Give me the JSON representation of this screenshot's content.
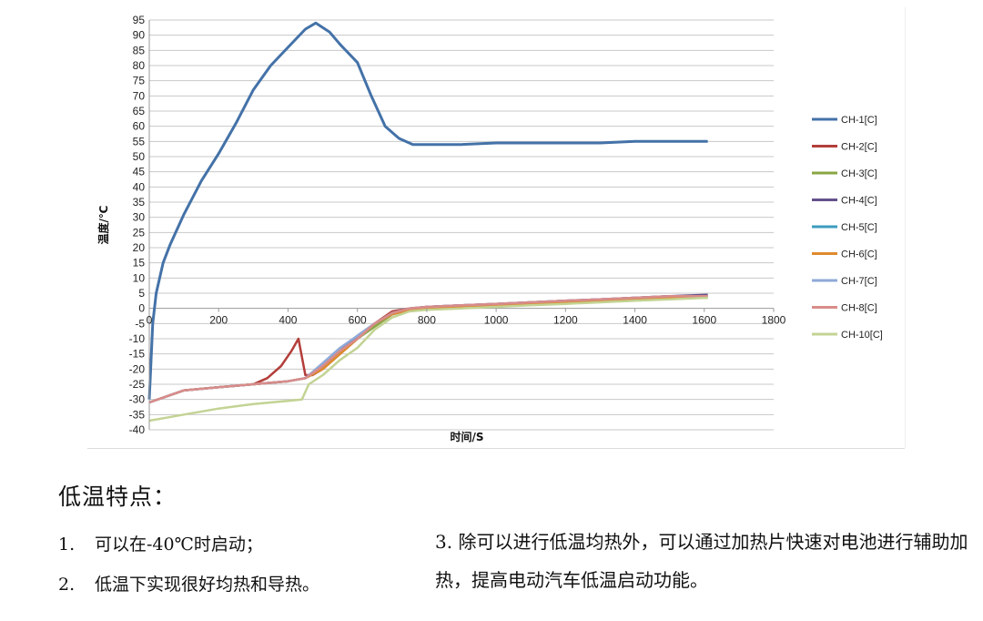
{
  "chart_data": {
    "type": "line",
    "xlabel": "时间/S",
    "ylabel": "温度/℃",
    "xlim": [
      0,
      1800
    ],
    "ylim": [
      -40,
      95
    ],
    "x_ticks": [
      0,
      200,
      400,
      600,
      800,
      1000,
      1200,
      1400,
      1600,
      1800
    ],
    "y_ticks": [
      -40,
      -35,
      -30,
      -25,
      -20,
      -15,
      -10,
      -5,
      0,
      5,
      10,
      15,
      20,
      25,
      30,
      35,
      40,
      45,
      50,
      55,
      60,
      65,
      70,
      75,
      80,
      85,
      90,
      95
    ],
    "grid": true,
    "legend_position": "right",
    "series": [
      {
        "name": "CH-1[C]",
        "color": "#4472a8",
        "points": [
          [
            0,
            -30
          ],
          [
            10,
            -5
          ],
          [
            20,
            5
          ],
          [
            40,
            15
          ],
          [
            60,
            21
          ],
          [
            80,
            26
          ],
          [
            100,
            31
          ],
          [
            150,
            42
          ],
          [
            200,
            51
          ],
          [
            250,
            61
          ],
          [
            300,
            72
          ],
          [
            350,
            80
          ],
          [
            400,
            86
          ],
          [
            450,
            92
          ],
          [
            480,
            94
          ],
          [
            520,
            91
          ],
          [
            550,
            87
          ],
          [
            600,
            81
          ],
          [
            640,
            70
          ],
          [
            680,
            60
          ],
          [
            720,
            56
          ],
          [
            760,
            54
          ],
          [
            800,
            54
          ],
          [
            900,
            54
          ],
          [
            1000,
            54.5
          ],
          [
            1100,
            54.5
          ],
          [
            1200,
            54.5
          ],
          [
            1300,
            54.5
          ],
          [
            1400,
            55
          ],
          [
            1500,
            55
          ],
          [
            1610,
            55
          ]
        ]
      },
      {
        "name": "CH-2[C]",
        "color": "#b33e3a",
        "points": [
          [
            0,
            -31
          ],
          [
            50,
            -29
          ],
          [
            100,
            -27
          ],
          [
            200,
            -26
          ],
          [
            300,
            -25
          ],
          [
            340,
            -23
          ],
          [
            380,
            -19
          ],
          [
            410,
            -14
          ],
          [
            430,
            -10
          ],
          [
            450,
            -22
          ],
          [
            470,
            -22
          ],
          [
            500,
            -20
          ],
          [
            550,
            -15
          ],
          [
            600,
            -10
          ],
          [
            650,
            -5
          ],
          [
            700,
            -1
          ],
          [
            750,
            0
          ],
          [
            800,
            0.5
          ],
          [
            900,
            1
          ],
          [
            1000,
            1.5
          ],
          [
            1100,
            2
          ],
          [
            1200,
            2.5
          ],
          [
            1300,
            3
          ],
          [
            1400,
            3.5
          ],
          [
            1500,
            4
          ],
          [
            1610,
            4
          ]
        ]
      },
      {
        "name": "CH-3[C]",
        "color": "#8aa644",
        "points": [
          [
            0,
            -31
          ],
          [
            50,
            -29
          ],
          [
            100,
            -27
          ],
          [
            200,
            -26
          ],
          [
            300,
            -25
          ],
          [
            400,
            -24
          ],
          [
            450,
            -23
          ],
          [
            500,
            -20
          ],
          [
            550,
            -15
          ],
          [
            600,
            -10
          ],
          [
            650,
            -6
          ],
          [
            700,
            -2
          ],
          [
            750,
            -0.5
          ],
          [
            800,
            0
          ],
          [
            900,
            0.5
          ],
          [
            1000,
            1
          ],
          [
            1100,
            1.5
          ],
          [
            1200,
            2
          ],
          [
            1300,
            2.5
          ],
          [
            1400,
            3
          ],
          [
            1500,
            3.5
          ],
          [
            1610,
            3.5
          ]
        ]
      },
      {
        "name": "CH-4[C]",
        "color": "#64528a",
        "points": [
          [
            0,
            -31
          ],
          [
            50,
            -29
          ],
          [
            100,
            -27
          ],
          [
            200,
            -26
          ],
          [
            300,
            -25
          ],
          [
            400,
            -24
          ],
          [
            450,
            -23
          ],
          [
            500,
            -19
          ],
          [
            550,
            -14
          ],
          [
            600,
            -9
          ],
          [
            650,
            -5
          ],
          [
            700,
            -1.5
          ],
          [
            750,
            0
          ],
          [
            800,
            0.5
          ],
          [
            900,
            1
          ],
          [
            1000,
            1.5
          ],
          [
            1100,
            2
          ],
          [
            1200,
            2.5
          ],
          [
            1300,
            3
          ],
          [
            1400,
            3.5
          ],
          [
            1500,
            4
          ],
          [
            1610,
            4.5
          ]
        ]
      },
      {
        "name": "CH-5[C]",
        "color": "#3c9cbf",
        "points": [
          [
            0,
            -31
          ],
          [
            50,
            -29
          ],
          [
            100,
            -27
          ],
          [
            200,
            -26
          ],
          [
            300,
            -25
          ],
          [
            400,
            -24
          ],
          [
            450,
            -23
          ],
          [
            500,
            -19
          ],
          [
            550,
            -14
          ],
          [
            600,
            -10
          ],
          [
            650,
            -5
          ],
          [
            700,
            -2
          ],
          [
            750,
            -0.5
          ],
          [
            800,
            0
          ],
          [
            900,
            0.5
          ],
          [
            1000,
            1
          ],
          [
            1100,
            1.5
          ],
          [
            1200,
            2
          ],
          [
            1300,
            2.5
          ],
          [
            1400,
            3
          ],
          [
            1500,
            3.5
          ],
          [
            1610,
            4
          ]
        ]
      },
      {
        "name": "CH-6[C]",
        "color": "#e08a2e",
        "points": [
          [
            0,
            -31
          ],
          [
            50,
            -29
          ],
          [
            100,
            -27
          ],
          [
            200,
            -26
          ],
          [
            300,
            -25
          ],
          [
            400,
            -24
          ],
          [
            450,
            -23
          ],
          [
            500,
            -20
          ],
          [
            550,
            -15
          ],
          [
            600,
            -10
          ],
          [
            650,
            -5
          ],
          [
            700,
            -2
          ],
          [
            750,
            -0.5
          ],
          [
            800,
            0
          ],
          [
            900,
            0.5
          ],
          [
            1000,
            1
          ],
          [
            1100,
            1.5
          ],
          [
            1200,
            2
          ],
          [
            1300,
            2.5
          ],
          [
            1400,
            3
          ],
          [
            1500,
            3.5
          ],
          [
            1610,
            4
          ]
        ]
      },
      {
        "name": "CH-7[C]",
        "color": "#8faad8",
        "points": [
          [
            0,
            -31
          ],
          [
            50,
            -29
          ],
          [
            100,
            -27
          ],
          [
            200,
            -26
          ],
          [
            300,
            -25
          ],
          [
            400,
            -24
          ],
          [
            450,
            -23
          ],
          [
            500,
            -18
          ],
          [
            550,
            -13
          ],
          [
            600,
            -9
          ],
          [
            650,
            -5
          ],
          [
            700,
            -1.5
          ],
          [
            750,
            0
          ],
          [
            800,
            0.5
          ],
          [
            900,
            1
          ],
          [
            1000,
            1.5
          ],
          [
            1100,
            2
          ],
          [
            1200,
            2.5
          ],
          [
            1300,
            3
          ],
          [
            1400,
            3.5
          ],
          [
            1500,
            4
          ],
          [
            1610,
            4
          ]
        ]
      },
      {
        "name": "CH-8[C]",
        "color": "#d98c8a",
        "points": [
          [
            0,
            -31
          ],
          [
            50,
            -29
          ],
          [
            100,
            -27
          ],
          [
            200,
            -26
          ],
          [
            300,
            -25
          ],
          [
            400,
            -24
          ],
          [
            450,
            -23
          ],
          [
            500,
            -19
          ],
          [
            550,
            -14
          ],
          [
            600,
            -10
          ],
          [
            650,
            -5
          ],
          [
            700,
            -1.5
          ],
          [
            750,
            0
          ],
          [
            800,
            0.5
          ],
          [
            900,
            1
          ],
          [
            1000,
            1.5
          ],
          [
            1100,
            2
          ],
          [
            1200,
            2.5
          ],
          [
            1300,
            3
          ],
          [
            1400,
            3.5
          ],
          [
            1500,
            4
          ],
          [
            1610,
            4
          ]
        ]
      },
      {
        "name": "CH-10[C]",
        "color": "#c3d394",
        "points": [
          [
            0,
            -37
          ],
          [
            50,
            -36
          ],
          [
            100,
            -35
          ],
          [
            200,
            -33
          ],
          [
            300,
            -31.5
          ],
          [
            400,
            -30.5
          ],
          [
            440,
            -30
          ],
          [
            460,
            -25
          ],
          [
            500,
            -22
          ],
          [
            550,
            -17
          ],
          [
            600,
            -13
          ],
          [
            650,
            -7
          ],
          [
            700,
            -3
          ],
          [
            750,
            -1
          ],
          [
            800,
            -0.5
          ],
          [
            900,
            0
          ],
          [
            1000,
            0.5
          ],
          [
            1100,
            1
          ],
          [
            1200,
            1.5
          ],
          [
            1300,
            2
          ],
          [
            1400,
            2.5
          ],
          [
            1500,
            3
          ],
          [
            1610,
            3.5
          ]
        ]
      }
    ]
  },
  "text": {
    "features_title": "低温特点：",
    "feature_1_num": "1.",
    "feature_1_text": "可以在-40℃时启动；",
    "feature_2_num": "2.",
    "feature_2_text": "低温下实现很好均热和导热。",
    "feature_3": "3. 除可以进行低温均热外，可以通过加热片快速对电池进行辅助加热，提高电动汽车低温启动功能。"
  }
}
